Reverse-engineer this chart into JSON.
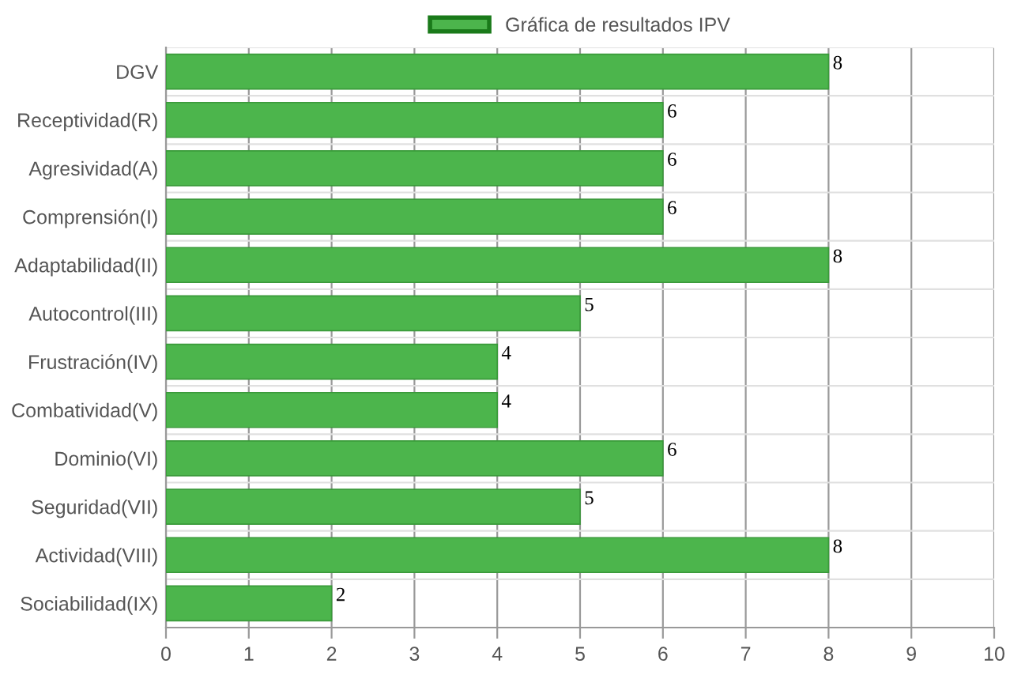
{
  "chart_data": {
    "type": "bar",
    "orientation": "horizontal",
    "categories": [
      "DGV",
      "Receptividad(R)",
      "Agresividad(A)",
      "Comprensión(I)",
      "Adaptabilidad(II)",
      "Autocontrol(III)",
      "Frustración(IV)",
      "Combatividad(V)",
      "Dominio(VI)",
      "Seguridad(VII)",
      "Actividad(VIII)",
      "Sociabilidad(IX)"
    ],
    "series": [
      {
        "name": "Gráfica de resultados IPV",
        "color": "#4cb54c",
        "values": [
          8,
          6,
          6,
          6,
          8,
          5,
          4,
          4,
          6,
          5,
          8,
          2
        ]
      }
    ],
    "xlim": [
      0,
      10
    ],
    "xticks": [
      0,
      1,
      2,
      3,
      4,
      5,
      6,
      7,
      8,
      9,
      10
    ],
    "grid": true,
    "legend": "top",
    "data_labels": true
  }
}
